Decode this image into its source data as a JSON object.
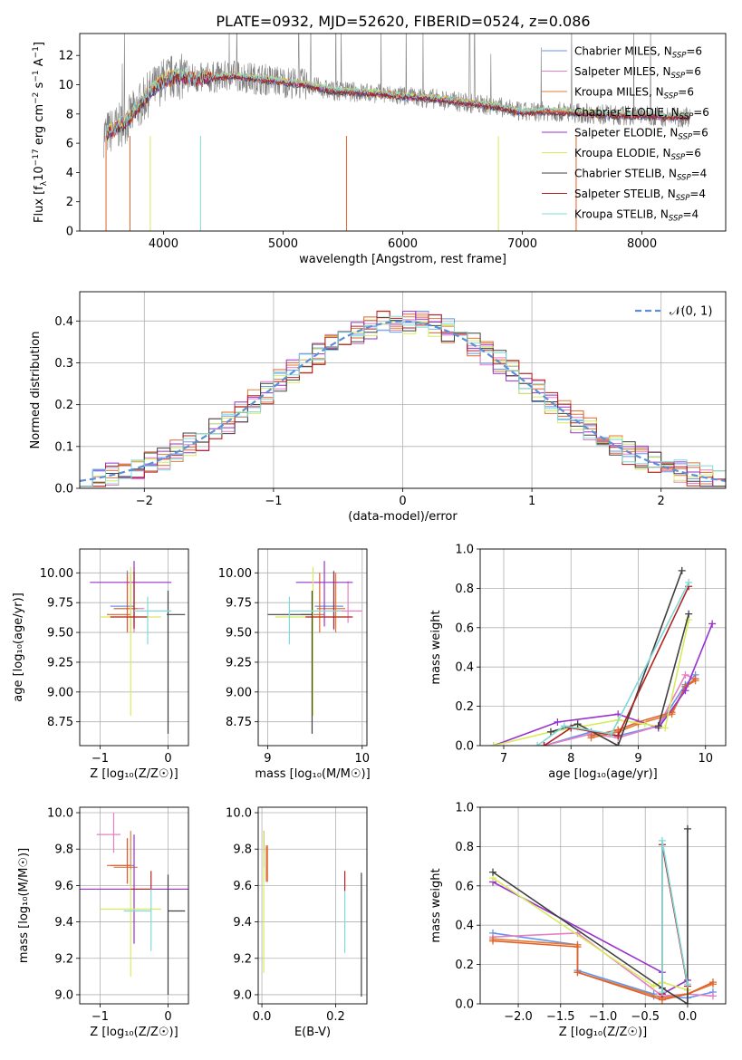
{
  "page": {
    "title": "PLATE=0932, MJD=52620, FIBERID=0524, z=0.086"
  },
  "colors": {
    "Chabrier MILES": "#6495ed",
    "Salpeter MILES": "#e87fc2",
    "Kroupa MILES": "#e07b39",
    "Chabrier ELODIE": "#e0622a",
    "Salpeter ELODIE": "#9932cc",
    "Kroupa ELODIE": "#d8ec5a",
    "Chabrier STELIB": "#404040",
    "Salpeter STELIB": "#b22222",
    "Kroupa STELIB": "#80d8d8",
    "data": "#808080",
    "gauss": "#5b8fd6"
  },
  "chart_data": [
    {
      "id": "spectrum",
      "type": "line",
      "title": "PLATE=0932, MJD=52620, FIBERID=0524, z=0.086",
      "xlabel": "wavelength [Angstrom, rest frame]",
      "ylabel": "Flux [f",
      "ylabel_sub": "λ",
      "ylabel_rest": "10",
      "ylabel_sup1": "−17",
      "ylabel_mid": " erg cm",
      "ylabel_sup2": "−2",
      "ylabel_mid2": " s",
      "ylabel_sup3": "−1",
      "ylabel_mid3": " A",
      "ylabel_sup4": "−1",
      "ylabel_end": "]",
      "xlim": [
        3300,
        8700
      ],
      "ylim": [
        0,
        13.5
      ],
      "xticks": [
        4000,
        5000,
        6000,
        7000,
        8000
      ],
      "yticks": [
        0,
        2,
        4,
        6,
        8,
        10,
        12
      ],
      "legend_position": "right",
      "grid": false,
      "continuum": {
        "x": [
          3500,
          3600,
          3700,
          3800,
          3900,
          4000,
          4100,
          4200,
          4300,
          4400,
          4600,
          4800,
          5000,
          5200,
          5400,
          5600,
          5800,
          6000,
          6200,
          6400,
          6600,
          6800,
          7000,
          7200,
          7400,
          7600,
          7800,
          8000,
          8200,
          8400
        ],
        "y": [
          6.6,
          7.0,
          7.6,
          8.6,
          9.6,
          10.3,
          10.6,
          10.5,
          10.4,
          10.5,
          10.6,
          10.4,
          10.2,
          10.0,
          9.6,
          9.5,
          9.4,
          9.2,
          9.1,
          8.9,
          8.7,
          8.5,
          8.1,
          8.2,
          8.1,
          8.0,
          7.9,
          7.9,
          7.8,
          7.8
        ]
      },
      "legend": [
        {
          "name": "Chabrier MILES",
          "nlabel": "N",
          "nsub": "SSP",
          "nval": "=6"
        },
        {
          "name": "Salpeter MILES",
          "nlabel": "N",
          "nsub": "SSP",
          "nval": "=6"
        },
        {
          "name": "Kroupa MILES",
          "nlabel": "N",
          "nsub": "SSP",
          "nval": "=6"
        },
        {
          "name": "Chabrier ELODIE",
          "nlabel": "N",
          "nsub": "SSP",
          "nval": "=6"
        },
        {
          "name": "Salpeter ELODIE",
          "nlabel": "N",
          "nsub": "SSP",
          "nval": "=6"
        },
        {
          "name": "Kroupa ELODIE",
          "nlabel": "N",
          "nsub": "SSP",
          "nval": "=6"
        },
        {
          "name": "Chabrier STELIB",
          "nlabel": "N",
          "nsub": "SSP",
          "nval": "=4"
        },
        {
          "name": "Salpeter STELIB",
          "nlabel": "N",
          "nsub": "SSP",
          "nval": "=4"
        },
        {
          "name": "Kroupa STELIB",
          "nlabel": "N",
          "nsub": "SSP",
          "nval": "=4"
        }
      ]
    },
    {
      "id": "residuals",
      "type": "line",
      "xlabel": "(data-model)/error",
      "ylabel": "Normed distribution",
      "xlim": [
        -2.5,
        2.5
      ],
      "ylim": [
        0,
        0.47
      ],
      "xticks": [
        -2,
        -1,
        0,
        1,
        2
      ],
      "yticks": [
        0.0,
        0.1,
        0.2,
        0.3,
        0.4
      ],
      "grid": true,
      "legend_position": "top-right",
      "gauss_label": "𝒩(0, 1)",
      "bin_width": 0.1,
      "bins_start": -2.5
    },
    {
      "id": "age-vs-Z",
      "type": "scatter",
      "xlabel": "Z [log₁₀(Z/Z☉)]",
      "ylabel": "age  [log₁₀(age/yr)]",
      "xlim": [
        -1.3,
        0.3
      ],
      "ylim": [
        8.55,
        10.2
      ],
      "xticks": [
        -1,
        0
      ],
      "yticks": [
        8.75,
        9.0,
        9.25,
        9.5,
        9.75,
        10.0
      ],
      "grid": true,
      "points": [
        {
          "model": "Chabrier MILES",
          "x": -0.6,
          "xerr": [
            0.25,
            0.1
          ],
          "y": 9.72,
          "yerr": [
            0.2,
            0.3
          ]
        },
        {
          "model": "Salpeter MILES",
          "x": -0.5,
          "xerr": [
            0.3,
            0.15
          ],
          "y": 9.7,
          "yerr": [
            0.2,
            0.35
          ]
        },
        {
          "model": "Kroupa MILES",
          "x": -0.55,
          "xerr": [
            0.25,
            0.1
          ],
          "y": 9.7,
          "yerr": [
            0.2,
            0.3
          ]
        },
        {
          "model": "Chabrier ELODIE",
          "x": -0.6,
          "xerr": [
            0.3,
            0.05
          ],
          "y": 9.65,
          "yerr": [
            0.15,
            0.35
          ]
        },
        {
          "model": "Salpeter ELODIE",
          "x": -0.5,
          "xerr": [
            0.65,
            0.55
          ],
          "y": 9.92,
          "yerr": [
            0.37,
            0.18
          ]
        },
        {
          "model": "Kroupa ELODIE",
          "x": -0.55,
          "xerr": [
            0.45,
            0.45
          ],
          "y": 9.63,
          "yerr": [
            0.83,
            0.42
          ]
        },
        {
          "model": "Chabrier STELIB",
          "x": 0.0,
          "xerr": [
            0.02,
            0.25
          ],
          "y": 9.65,
          "yerr": [
            1.0,
            0.2
          ]
        },
        {
          "model": "Salpeter STELIB",
          "x": -0.5,
          "xerr": [
            0.35,
            0.2
          ],
          "y": 9.63,
          "yerr": [
            0.1,
            0.38
          ]
        },
        {
          "model": "Kroupa STELIB",
          "x": -0.3,
          "xerr": [
            0.2,
            0.35
          ],
          "y": 9.68,
          "yerr": [
            0.28,
            0.12
          ]
        }
      ]
    },
    {
      "id": "age-vs-mass",
      "type": "scatter",
      "xlabel": "mass [log₁₀(M/M☉)]",
      "ylabel": "",
      "xlim": [
        8.9,
        10.05
      ],
      "ylim": [
        8.55,
        10.2
      ],
      "xticks": [
        9,
        10
      ],
      "yticks": [
        8.75,
        9.0,
        9.25,
        9.5,
        9.75,
        10.0
      ],
      "grid": true,
      "points": [
        {
          "model": "Chabrier MILES",
          "x": 9.7,
          "xerr": [
            0.2,
            0.1
          ],
          "y": 9.72,
          "yerr": [
            0.2,
            0.3
          ]
        },
        {
          "model": "Salpeter MILES",
          "x": 9.85,
          "xerr": [
            0.15,
            0.15
          ],
          "y": 9.68,
          "yerr": [
            0.1,
            0.25
          ]
        },
        {
          "model": "Kroupa MILES",
          "x": 9.72,
          "xerr": [
            0.2,
            0.1
          ],
          "y": 9.7,
          "yerr": [
            0.2,
            0.3
          ]
        },
        {
          "model": "Chabrier ELODIE",
          "x": 9.55,
          "xerr": [
            0.2,
            0.05
          ],
          "y": 9.65,
          "yerr": [
            0.15,
            0.35
          ]
        },
        {
          "model": "Salpeter ELODIE",
          "x": 9.6,
          "xerr": [
            0.3,
            0.3
          ],
          "y": 9.92,
          "yerr": [
            0.37,
            0.18
          ]
        },
        {
          "model": "Kroupa ELODIE",
          "x": 9.48,
          "xerr": [
            0.4,
            0.4
          ],
          "y": 9.63,
          "yerr": [
            0.83,
            0.42
          ]
        },
        {
          "model": "Chabrier STELIB",
          "x": 9.47,
          "xerr": [
            0.47,
            0.0
          ],
          "y": 9.65,
          "yerr": [
            1.0,
            0.2
          ]
        },
        {
          "model": "Salpeter STELIB",
          "x": 9.7,
          "xerr": [
            0.3,
            0.2
          ],
          "y": 9.63,
          "yerr": [
            0.1,
            0.38
          ]
        },
        {
          "model": "Kroupa STELIB",
          "x": 9.23,
          "xerr": [
            0.0,
            0.55
          ],
          "y": 9.68,
          "yerr": [
            0.28,
            0.12
          ]
        }
      ]
    },
    {
      "id": "weight-vs-age",
      "type": "line",
      "xlabel": "age  [log₁₀(age/yr)]",
      "ylabel": "mass weight",
      "xlim": [
        6.65,
        10.3
      ],
      "ylim": [
        0,
        1.0
      ],
      "xticks": [
        7,
        8,
        9,
        10
      ],
      "yticks": [
        0.0,
        0.2,
        0.4,
        0.6,
        0.8,
        1.0
      ],
      "grid": true,
      "series": [
        {
          "model": "Chabrier MILES",
          "x": [
            7.6,
            8.3,
            8.7,
            9.3,
            9.7,
            9.85
          ],
          "y": [
            0.0,
            0.07,
            0.05,
            0.1,
            0.31,
            0.36
          ]
        },
        {
          "model": "Salpeter MILES",
          "x": [
            7.6,
            8.3,
            8.7,
            9.3,
            9.7,
            9.85
          ],
          "y": [
            0.0,
            0.06,
            0.04,
            0.1,
            0.36,
            0.34
          ]
        },
        {
          "model": "Kroupa MILES",
          "x": [
            8.3,
            8.7,
            9.0,
            9.5,
            9.7,
            9.85
          ],
          "y": [
            0.04,
            0.07,
            0.11,
            0.16,
            0.3,
            0.33
          ]
        },
        {
          "model": "Chabrier ELODIE",
          "x": [
            8.3,
            8.7,
            9.0,
            9.5,
            9.7,
            9.85
          ],
          "y": [
            0.05,
            0.08,
            0.12,
            0.17,
            0.3,
            0.34
          ]
        },
        {
          "model": "Salpeter ELODIE",
          "x": [
            6.85,
            7.8,
            8.7,
            9.3,
            9.7,
            10.1
          ],
          "y": [
            0.0,
            0.12,
            0.16,
            0.09,
            0.28,
            0.62
          ]
        },
        {
          "model": "Kroupa ELODIE",
          "x": [
            6.85,
            7.7,
            8.7,
            9.1,
            9.4,
            9.75
          ],
          "y": [
            0.0,
            0.07,
            0.13,
            0.11,
            0.09,
            0.64
          ]
        },
        {
          "model": "Chabrier STELIB",
          "x": [
            7.7,
            8.1,
            8.7,
            9.65
          ],
          "y": [
            0.07,
            0.11,
            0.0,
            0.89
          ]
        },
        {
          "model": "Salpeter STELIB",
          "x": [
            7.6,
            8.0,
            8.7,
            9.75
          ],
          "y": [
            0.0,
            0.09,
            0.05,
            0.81
          ]
        },
        {
          "model": "Kroupa STELIB",
          "x": [
            7.5,
            7.9,
            8.6,
            9.75
          ],
          "y": [
            0.0,
            0.1,
            0.06,
            0.83
          ]
        },
        {
          "model": "Chabrier STELIB",
          "x": [
            9.3,
            9.75
          ],
          "y": [
            0.1,
            0.67
          ]
        }
      ]
    },
    {
      "id": "mass-vs-Z",
      "type": "scatter",
      "xlabel": "Z [log₁₀(Z/Z☉)]",
      "ylabel": "mass [log₁₀(M/M☉)]",
      "xlim": [
        -1.3,
        0.3
      ],
      "ylim": [
        8.95,
        10.03
      ],
      "xticks": [
        -1,
        0
      ],
      "yticks": [
        9.0,
        9.2,
        9.4,
        9.6,
        9.8,
        10.0
      ],
      "grid": true,
      "points": [
        {
          "model": "Chabrier MILES",
          "x": -0.6,
          "xerr": [
            0.25,
            0.1
          ],
          "y": 9.71,
          "yerr": [
            0.1,
            0.15
          ]
        },
        {
          "model": "Salpeter MILES",
          "x": -0.8,
          "xerr": [
            0.25,
            0.1
          ],
          "y": 9.88,
          "yerr": [
            0.1,
            0.12
          ]
        },
        {
          "model": "Kroupa MILES",
          "x": -0.55,
          "xerr": [
            0.25,
            0.1
          ],
          "y": 9.7,
          "yerr": [
            0.1,
            0.2
          ]
        },
        {
          "model": "Chabrier ELODIE",
          "x": -0.6,
          "xerr": [
            0.3,
            0.05
          ],
          "y": 9.71,
          "yerr": [
            0.1,
            0.15
          ]
        },
        {
          "model": "Salpeter ELODIE",
          "x": -0.5,
          "xerr": [
            0.8,
            0.8
          ],
          "y": 9.58,
          "yerr": [
            0.3,
            0.3
          ]
        },
        {
          "model": "Kroupa ELODIE",
          "x": -0.55,
          "xerr": [
            0.45,
            0.45
          ],
          "y": 9.47,
          "yerr": [
            0.37,
            0.22
          ]
        },
        {
          "model": "Chabrier STELIB",
          "x": 0.0,
          "xerr": [
            0.0,
            0.25
          ],
          "y": 9.46,
          "yerr": [
            0.46,
            0.2
          ]
        },
        {
          "model": "Salpeter STELIB",
          "x": -0.25,
          "xerr": [
            0.3,
            0.0
          ],
          "y": 9.58,
          "yerr": [
            0.0,
            0.1
          ]
        },
        {
          "model": "Kroupa STELIB",
          "x": -0.25,
          "xerr": [
            0.4,
            0.0
          ],
          "y": 9.46,
          "yerr": [
            0.22,
            0.12
          ]
        }
      ]
    },
    {
      "id": "mass-vs-EBV",
      "type": "scatter",
      "xlabel": "E(B-V)",
      "ylabel": "",
      "xlim": [
        -0.01,
        0.285
      ],
      "ylim": [
        8.95,
        10.03
      ],
      "xticks": [
        0.0,
        0.2
      ],
      "yticks": [
        9.0,
        9.2,
        9.4,
        9.6,
        9.8,
        10.0
      ],
      "grid": true,
      "points": [
        {
          "model": "Chabrier MILES",
          "x": 0.005,
          "y": 9.78,
          "yerr": [
            0.08,
            0.12
          ]
        },
        {
          "model": "Salpeter MILES",
          "x": 0.005,
          "y": 9.8,
          "yerr": [
            0.1,
            0.1
          ]
        },
        {
          "model": "Kroupa MILES",
          "x": 0.012,
          "y": 9.72,
          "yerr": [
            0.1,
            0.1
          ]
        },
        {
          "model": "Chabrier ELODIE",
          "x": 0.015,
          "y": 9.72,
          "yerr": [
            0.1,
            0.1
          ]
        },
        {
          "model": "Salpeter ELODIE",
          "x": 0.005,
          "y": 9.82,
          "yerr": [
            0.04,
            0.08
          ]
        },
        {
          "model": "Kroupa ELODIE",
          "x": 0.005,
          "y": 9.5,
          "yerr": [
            0.38,
            0.4
          ]
        },
        {
          "model": "Chabrier STELIB",
          "x": 0.27,
          "y": 9.32,
          "yerr": [
            0.33,
            0.35
          ]
        },
        {
          "model": "Salpeter STELIB",
          "x": 0.225,
          "y": 9.62,
          "yerr": [
            0.05,
            0.06
          ]
        },
        {
          "model": "Kroupa STELIB",
          "x": 0.225,
          "y": 9.45,
          "yerr": [
            0.22,
            0.12
          ]
        }
      ]
    },
    {
      "id": "weight-vs-Z",
      "type": "line",
      "xlabel": "Z [log₁₀(Z/Z☉)]",
      "ylabel": "mass weight",
      "xlim": [
        -2.45,
        0.45
      ],
      "ylim": [
        0,
        1.0
      ],
      "xticks": [
        -2.0,
        -1.5,
        -1.0,
        -0.5,
        0.0
      ],
      "yticks": [
        0.0,
        0.2,
        0.4,
        0.6,
        0.8,
        1.0
      ],
      "grid": true,
      "series": [
        {
          "model": "Chabrier MILES",
          "x": [
            -2.3,
            -1.3,
            -1.3,
            -0.4,
            -0.4,
            0.0,
            0.3
          ],
          "y": [
            0.36,
            0.3,
            0.17,
            0.05,
            0.04,
            0.03,
            0.06
          ]
        },
        {
          "model": "Salpeter MILES",
          "x": [
            -2.3,
            -1.3,
            -0.3,
            0.0,
            0.3
          ],
          "y": [
            0.34,
            0.36,
            0.04,
            0.05,
            0.04
          ]
        },
        {
          "model": "Kroupa MILES",
          "x": [
            -2.3,
            -1.3,
            -1.3,
            -0.3,
            0.0,
            0.3
          ],
          "y": [
            0.33,
            0.3,
            0.16,
            0.03,
            0.05,
            0.1
          ]
        },
        {
          "model": "Chabrier ELODIE",
          "x": [
            -2.3,
            -1.3,
            -1.3,
            -0.3,
            0.0,
            0.3
          ],
          "y": [
            0.32,
            0.29,
            0.16,
            0.02,
            0.05,
            0.11
          ]
        },
        {
          "model": "Salpeter ELODIE",
          "x": [
            -2.3,
            -0.3,
            -0.3,
            0.0
          ],
          "y": [
            0.62,
            0.16,
            0.05,
            0.12
          ]
        },
        {
          "model": "Kroupa ELODIE",
          "x": [
            -2.3,
            -0.4,
            -0.3,
            0.0
          ],
          "y": [
            0.64,
            0.09,
            0.11,
            0.07
          ]
        },
        {
          "model": "Chabrier STELIB",
          "x": [
            -2.3,
            -0.3,
            0.0,
            0.0
          ],
          "y": [
            0.67,
            0.08,
            0.0,
            0.89
          ]
        },
        {
          "model": "Salpeter STELIB",
          "x": [
            -0.3,
            -0.3,
            0.0
          ],
          "y": [
            0.05,
            0.81,
            0.09
          ]
        },
        {
          "model": "Kroupa STELIB",
          "x": [
            -0.3,
            -0.3,
            0.0
          ],
          "y": [
            0.06,
            0.83,
            0.1
          ]
        }
      ]
    }
  ]
}
